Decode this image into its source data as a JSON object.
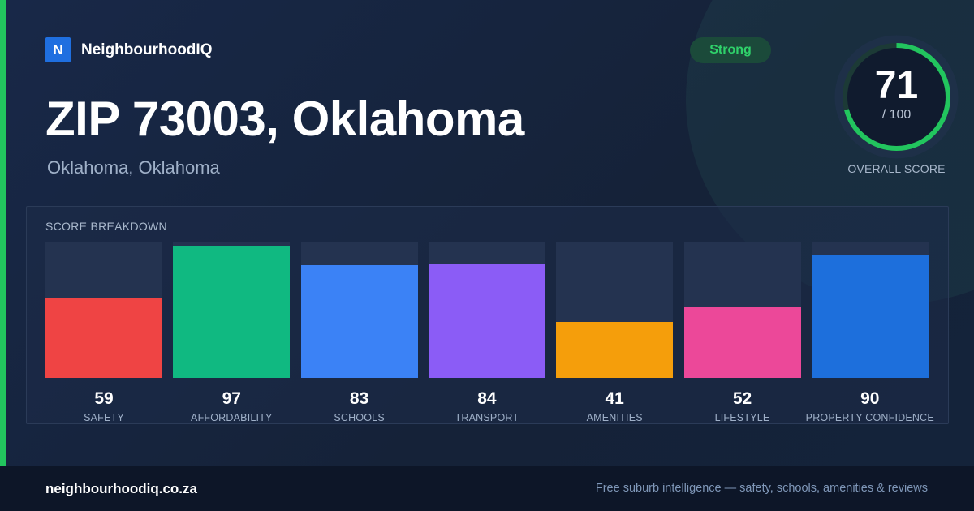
{
  "brand": {
    "logo_letter": "N",
    "name": "NeighbourhoodIQ"
  },
  "title": "ZIP 73003, Oklahoma",
  "subtitle": "Oklahoma, Oklahoma",
  "badge": {
    "label": "Strong",
    "color": "#22c55e"
  },
  "overall_score": {
    "value": "71",
    "max": "/ 100",
    "label": "OVERALL SCORE",
    "fraction": 0.71
  },
  "chart_data": {
    "type": "bar",
    "title": "SCORE BREAKDOWN",
    "categories": [
      "SAFETY",
      "AFFORDABILITY",
      "SCHOOLS",
      "TRANSPORT",
      "AMENITIES",
      "LIFESTYLE",
      "PROPERTY CONFIDENCE"
    ],
    "values": [
      59,
      97,
      83,
      84,
      41,
      52,
      90
    ],
    "colors": [
      "#ef4444",
      "#10b981",
      "#3b82f6",
      "#8b5cf6",
      "#f59e0b",
      "#ec4899",
      "#1d6fdc"
    ],
    "ylim": [
      0,
      100
    ]
  },
  "footer": {
    "url": "neighbourhoodiq.co.za",
    "tagline": "Free suburb intelligence — safety, schools, amenities & reviews"
  }
}
